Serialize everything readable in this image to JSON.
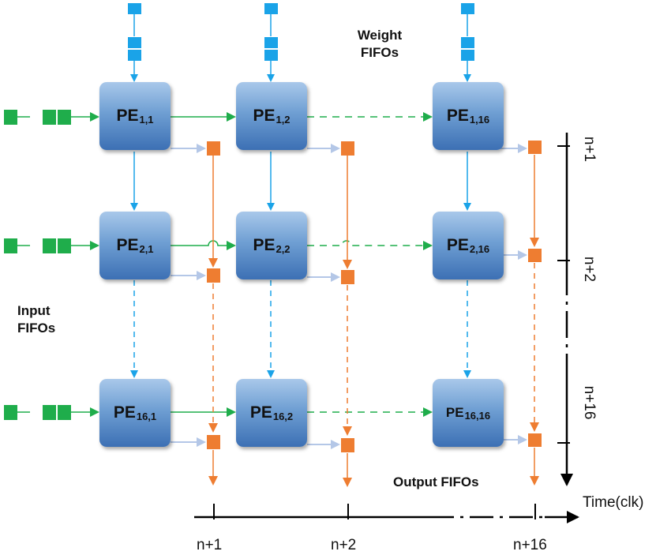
{
  "labels": {
    "weight_fifos_line1": "Weight",
    "weight_fifos_line2": "FIFOs",
    "input_fifos_line1": "Input",
    "input_fifos_line2": "FIFOs",
    "output_fifos": "Output FIFOs",
    "time_axis": "Time(clk)"
  },
  "pes": [
    {
      "id": "pe-1-1",
      "name": "PE",
      "sub": "1,1"
    },
    {
      "id": "pe-1-2",
      "name": "PE",
      "sub": "1,2"
    },
    {
      "id": "pe-1-16",
      "name": "PE",
      "sub": "1,16"
    },
    {
      "id": "pe-2-1",
      "name": "PE",
      "sub": "2,1"
    },
    {
      "id": "pe-2-2",
      "name": "PE",
      "sub": "2,2"
    },
    {
      "id": "pe-2-16",
      "name": "PE",
      "sub": "2,16"
    },
    {
      "id": "pe-16-1",
      "name": "PE",
      "sub": "16,1"
    },
    {
      "id": "pe-16-2",
      "name": "PE",
      "sub": "16,2"
    },
    {
      "id": "pe-16-16",
      "name": "PE",
      "sub": "16,16"
    }
  ],
  "time_ticks": [
    "n+1",
    "n+2",
    "n+16"
  ],
  "vertical_ticks": [
    "n+1",
    "n+2",
    "n+16"
  ],
  "colors": {
    "weight": "#1aa3e8",
    "input": "#1fad4b",
    "output": "#ee7d31",
    "output_arrow": "#b4c7e7",
    "pe_top": "#a9c8ea",
    "pe_bottom": "#3c70b4"
  }
}
